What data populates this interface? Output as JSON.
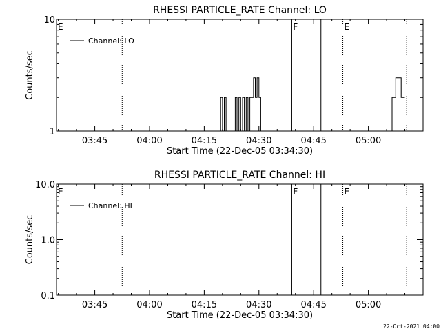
{
  "footer_timestamp": "22-Oct-2021 04:00",
  "chart_data": [
    {
      "type": "line",
      "title": "RHESSI PARTICLE_RATE Channel: LO",
      "xlabel": "Start Time (22-Dec-05 03:34:30)",
      "ylabel": "Counts/sec",
      "xlim": [
        "03:34:30",
        "05:15:00"
      ],
      "x_ticks": [
        "03:45",
        "04:00",
        "04:15",
        "04:30",
        "04:45",
        "05:00"
      ],
      "y_scale": "log",
      "ylim": [
        1,
        10
      ],
      "y_ticks": [
        "1",
        "10"
      ],
      "legend": {
        "label": "Channel: LO",
        "position": "top-left"
      },
      "grid": false,
      "markers": [
        {
          "label": "E",
          "time": "03:34:30",
          "style": "none"
        },
        {
          "label": "",
          "time": "03:52:30",
          "style": "dotted"
        },
        {
          "label": "F",
          "time": "04:39:00",
          "style": "solid"
        },
        {
          "label": "",
          "time": "04:47:00",
          "style": "solid"
        },
        {
          "label": "E",
          "time": "04:53:00",
          "style": "dotted"
        },
        {
          "label": "",
          "time": "05:10:30",
          "style": "dotted"
        }
      ],
      "series": [
        {
          "x": [
            "04:19:00",
            "04:19:30",
            "04:20:00",
            "04:20:30",
            "04:21:00",
            "04:21:30",
            "04:22:00",
            "04:23:00",
            "04:23:30",
            "04:24:00",
            "04:24:30",
            "04:25:00",
            "04:25:30",
            "04:26:00",
            "04:26:30",
            "04:27:00",
            "04:27:30",
            "04:28:00",
            "04:28:30",
            "04:29:00",
            "04:29:30",
            "04:30:00",
            "04:30:30",
            "04:31:00",
            "04:32:00",
            "05:06:00",
            "05:06:30",
            "05:07:00",
            "05:07:30",
            "05:08:00",
            "05:08:30",
            "05:09:00",
            "05:10:00"
          ],
          "values": [
            1,
            2,
            1,
            2,
            1,
            1,
            1,
            1,
            2,
            1,
            2,
            1,
            2,
            1,
            2,
            1,
            2,
            2,
            3,
            2,
            3,
            2,
            1,
            1,
            1,
            1,
            2,
            2,
            3,
            3,
            3,
            2,
            2
          ]
        }
      ]
    },
    {
      "type": "line",
      "title": "RHESSI PARTICLE_RATE Channel: HI",
      "xlabel": "Start Time (22-Dec-05 03:34:30)",
      "ylabel": "Counts/sec",
      "xlim": [
        "03:34:30",
        "05:15:00"
      ],
      "x_ticks": [
        "03:45",
        "04:00",
        "04:15",
        "04:30",
        "04:45",
        "05:00"
      ],
      "y_scale": "log",
      "ylim": [
        0.1,
        10
      ],
      "y_ticks": [
        "0.1",
        "1.0",
        "10.0"
      ],
      "legend": {
        "label": "Channel: HI",
        "position": "top-left"
      },
      "grid": false,
      "markers": [
        {
          "label": "E",
          "time": "03:34:30",
          "style": "none"
        },
        {
          "label": "",
          "time": "03:52:30",
          "style": "dotted"
        },
        {
          "label": "F",
          "time": "04:39:00",
          "style": "solid"
        },
        {
          "label": "",
          "time": "04:47:00",
          "style": "solid"
        },
        {
          "label": "E",
          "time": "04:53:00",
          "style": "dotted"
        },
        {
          "label": "",
          "time": "05:10:30",
          "style": "dotted"
        }
      ],
      "series": []
    }
  ]
}
